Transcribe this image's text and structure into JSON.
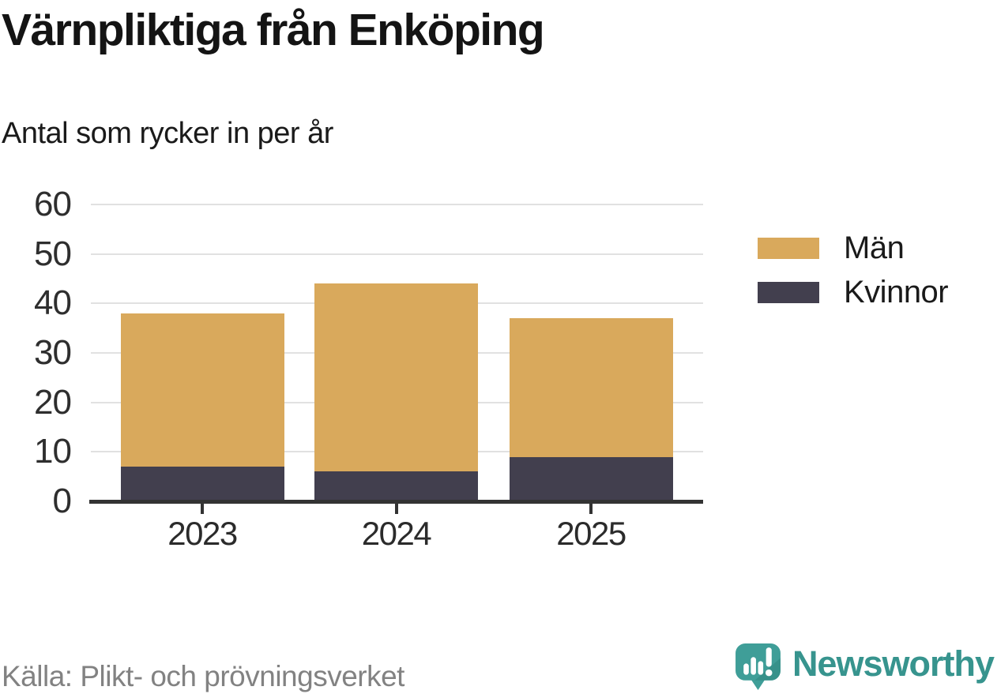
{
  "header": {
    "title": "Värnpliktiga från Enköping",
    "subtitle": "Antal som rycker in per år"
  },
  "chart_data": {
    "type": "bar",
    "stacked": true,
    "categories": [
      "2023",
      "2024",
      "2025"
    ],
    "series": [
      {
        "name": "Kvinnor",
        "values": [
          7,
          6,
          9
        ],
        "color": "#423F4E"
      },
      {
        "name": "Män",
        "values": [
          31,
          38,
          28
        ],
        "color": "#D9A95C"
      }
    ],
    "totals": [
      38,
      44,
      37
    ],
    "xlabel": "",
    "ylabel": "",
    "ylim": [
      0,
      60
    ],
    "y_ticks": [
      0,
      10,
      20,
      30,
      40,
      50,
      60
    ],
    "grid": true,
    "legend": [
      "Män",
      "Kvinnor"
    ],
    "legend_position": "right"
  },
  "legend": {
    "men_label": "Män",
    "women_label": "Kvinnor"
  },
  "footer": {
    "source": "Källa: Plikt- och prövningsverket",
    "brand_name": "Newsworthy",
    "brand_icon": "newsworthy-speech-bubble-chart-icon"
  },
  "colors": {
    "men": "#D9A95C",
    "women": "#423F4E",
    "axis": "#333333",
    "gridline": "#e1e1e1",
    "source_text": "#828282",
    "brand_teal": "#37948E",
    "brand_teal_icon": "#3F9E98",
    "brand_teal_shade": "#2F867F"
  }
}
